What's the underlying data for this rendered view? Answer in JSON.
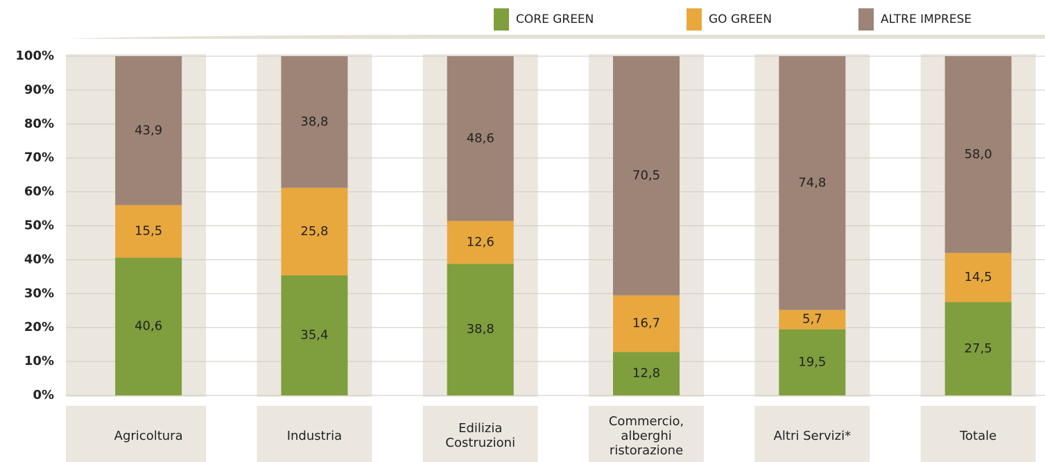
{
  "chart_data": {
    "type": "stacked-bar",
    "categories": [
      "Agricoltura",
      "Industria",
      "Edilizia\nCostruzioni",
      "Commercio,\nalberghi\nristorazione",
      "Altri Servizi*",
      "Totale"
    ],
    "series": [
      {
        "name": "CORE GREEN",
        "color": "#7f9e3e",
        "values": [
          40.6,
          35.4,
          38.8,
          12.8,
          19.5,
          27.5
        ],
        "value_labels": [
          "40,6",
          "35,4",
          "38,8",
          "12,8",
          "19,5",
          "27,5"
        ]
      },
      {
        "name": "GO GREEN",
        "color": "#e8a83e",
        "values": [
          15.5,
          25.8,
          12.6,
          16.7,
          5.7,
          14.5
        ],
        "value_labels": [
          "15,5",
          "25,8",
          "12,6",
          "16,7",
          "5,7",
          "14,5"
        ]
      },
      {
        "name": "ALTRE IMPRESE",
        "color": "#9d8476",
        "values": [
          43.9,
          38.8,
          48.6,
          70.5,
          74.8,
          58.0
        ],
        "value_labels": [
          "43,9",
          "38,8",
          "48,6",
          "70,5",
          "74,8",
          "58,0"
        ]
      }
    ],
    "ylim": [
      0,
      100
    ],
    "yticks": [
      {
        "value": 0,
        "label": "0%"
      },
      {
        "value": 10,
        "label": "10%"
      },
      {
        "value": 20,
        "label": "20%"
      },
      {
        "value": 30,
        "label": "30%"
      },
      {
        "value": 40,
        "label": "40%"
      },
      {
        "value": 50,
        "label": "50%"
      },
      {
        "value": 60,
        "label": "60%"
      },
      {
        "value": 70,
        "label": "70%"
      },
      {
        "value": 80,
        "label": "80%"
      },
      {
        "value": 90,
        "label": "90%"
      },
      {
        "value": 100,
        "label": "100%"
      }
    ],
    "grid": true,
    "legend": "top"
  }
}
